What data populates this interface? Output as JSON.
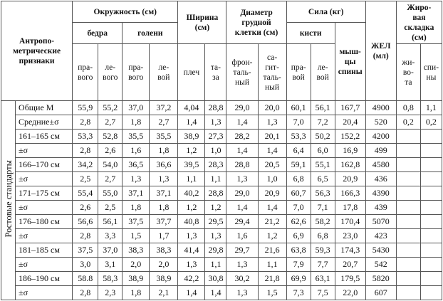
{
  "table": {
    "header_rows": [
      [
        "Антропо-\nметрические\nпризнаки",
        "Окружность (см)",
        "Ширина\n(см)",
        "Диаметр\nгрудной\nклетки (см)",
        "Сила (кг)",
        "ЖЕЛ\n(мл)",
        "Жиро-\nвая\nскладка\n(см)"
      ],
      [
        "бедра",
        "голени",
        "кисти",
        "мыш-\nцы\nспины"
      ],
      [
        "пра-\nвого",
        "ле-\nвого",
        "пра-\nвого",
        "ле-\nвой",
        "плеч",
        "та-\nза",
        "фрон-\nталь-\nный",
        "са-\nгит-\nталь-\nный",
        "пра-\nвой",
        "ле-\nвой",
        "жи-\nво-\nта",
        "спи-\nны"
      ]
    ],
    "group_label": "Ростовые стандарты",
    "rows": [
      {
        "label": "Общие М",
        "values": [
          "55,9",
          "55,2",
          "37,0",
          "37,2",
          "4,04",
          "28,8",
          "29,0",
          "20,0",
          "60,1",
          "56,1",
          "167,7",
          "4900",
          "0,8",
          "1,1"
        ]
      },
      {
        "label": "Средние±σ",
        "values": [
          "2,8",
          "2,7",
          "1,8",
          "2,7",
          "1,4",
          "1,3",
          "1,4",
          "1,3",
          "7,0",
          "7,2",
          "20,4",
          "520",
          "0,2",
          "0,2"
        ]
      },
      {
        "label": "161–165 см",
        "values": [
          "53,3",
          "52,8",
          "35,5",
          "35,5",
          "38,9",
          "27,3",
          "28,2",
          "20,1",
          "53,3",
          "50,2",
          "152,2",
          "4200"
        ]
      },
      {
        "label": "±σ",
        "values": [
          "2,8",
          "2,6",
          "1,6",
          "1,8",
          "1,2",
          "1,0",
          "1,4",
          "1,4",
          "6,4",
          "6,0",
          "16,9",
          "499"
        ]
      },
      {
        "label": "166–170 см",
        "values": [
          "34,2",
          "54,0",
          "36,5",
          "36,6",
          "39,5",
          "28,3",
          "28,8",
          "20,5",
          "59,1",
          "55,1",
          "162,8",
          "4580"
        ]
      },
      {
        "label": "±σ",
        "values": [
          "2,5",
          "2,7",
          "1,3",
          "1,3",
          "1,1",
          "1,1",
          "1,3",
          "1,0",
          "6,8",
          "6,5",
          "20,9",
          "436"
        ]
      },
      {
        "label": "171–175 см",
        "values": [
          "55,4",
          "55,0",
          "37,1",
          "37,1",
          "40,2",
          "28,8",
          "29,0",
          "20,9",
          "60,7",
          "56,3",
          "166,3",
          "4390"
        ]
      },
      {
        "label": "±σ",
        "values": [
          "2,6",
          "2,5",
          "1,8",
          "1,8",
          "1,2",
          "1,2",
          "1,4",
          "1,4",
          "7,0",
          "7,1",
          "17,8",
          "439"
        ]
      },
      {
        "label": "176–180 см",
        "values": [
          "56,6",
          "56,1",
          "37,5",
          "37,7",
          "40,8",
          "29,5",
          "29,4",
          "21,2",
          "62,6",
          "58,2",
          "170,4",
          "5070"
        ]
      },
      {
        "label": "±σ",
        "values": [
          "2,8",
          "3,3",
          "1,5",
          "1,7",
          "1,3",
          "1,3",
          "1,6",
          "1,2",
          "6,9",
          "6,8",
          "23,0",
          "423"
        ]
      },
      {
        "label": "181–185 см",
        "values": [
          "37,5",
          "37,0",
          "38,3",
          "38,3",
          "41,4",
          "29,8",
          "29,7",
          "21,6",
          "63,8",
          "59,3",
          "174,3",
          "5430"
        ]
      },
      {
        "label": "±σ",
        "values": [
          "3,0",
          "3,1",
          "2,0",
          "2,0",
          "1,3",
          "1,1",
          "1,3",
          "1,1",
          "7,9",
          "7,7",
          "20,7",
          "542"
        ]
      },
      {
        "label": "186–190 см",
        "values": [
          "58.8",
          "58,3",
          "38,9",
          "38,9",
          "42,2",
          "30,8",
          "30,2",
          "21,8",
          "69,9",
          "63,1",
          "179,5",
          "5820"
        ]
      },
      {
        "label": "±σ",
        "values": [
          "2,8",
          "2,3",
          "1,8",
          "2,1",
          "1,4",
          "1,4",
          "1,3",
          "1,5",
          "7,3",
          "7,5",
          "22,0",
          "607"
        ]
      }
    ]
  }
}
